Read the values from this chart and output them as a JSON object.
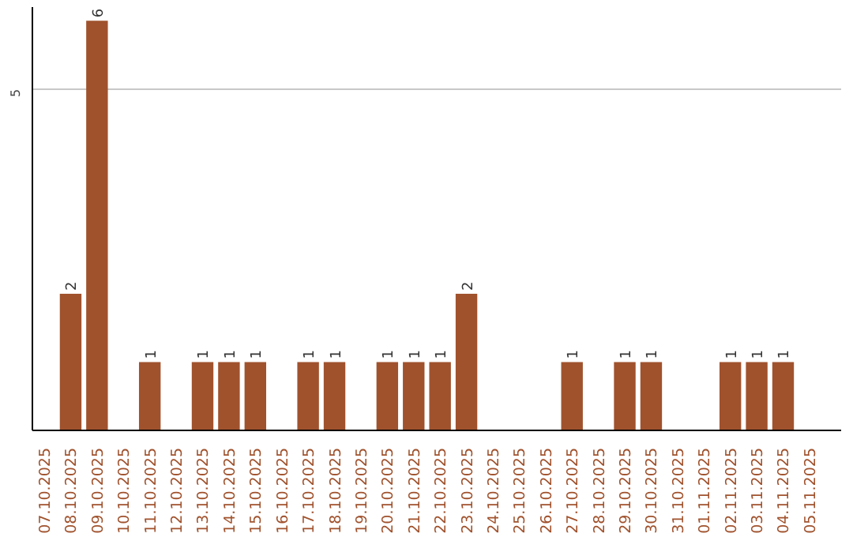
{
  "chart_data": {
    "type": "bar",
    "categories": [
      "07.10.2025",
      "08.10.2025",
      "09.10.2025",
      "10.10.2025",
      "11.10.2025",
      "12.10.2025",
      "13.10.2025",
      "14.10.2025",
      "15.10.2025",
      "16.10.2025",
      "17.10.2025",
      "18.10.2025",
      "19.10.2025",
      "20.10.2025",
      "21.10.2025",
      "22.10.2025",
      "23.10.2025",
      "24.10.2025",
      "25.10.2025",
      "26.10.2025",
      "27.10.2025",
      "28.10.2025",
      "29.10.2025",
      "30.10.2025",
      "31.10.2025",
      "01.11.2025",
      "02.11.2025",
      "03.11.2025",
      "04.11.2025",
      "05.11.2025"
    ],
    "values": [
      0,
      2,
      6,
      0,
      1,
      0,
      1,
      1,
      1,
      0,
      1,
      1,
      0,
      1,
      1,
      1,
      2,
      0,
      0,
      0,
      1,
      0,
      1,
      1,
      0,
      0,
      1,
      1,
      1,
      0
    ],
    "value_labels": [
      null,
      "2",
      "6",
      null,
      "1",
      null,
      "1",
      "1",
      "1",
      null,
      "1",
      "1",
      null,
      "1",
      "1",
      "1",
      "2",
      null,
      null,
      null,
      "1",
      null,
      "1",
      "1",
      null,
      null,
      "1",
      "1",
      "1",
      null
    ],
    "color": "#a0522d",
    "ylim": [
      0,
      6.2
    ],
    "yticks": [
      5
    ],
    "grid": "y"
  }
}
